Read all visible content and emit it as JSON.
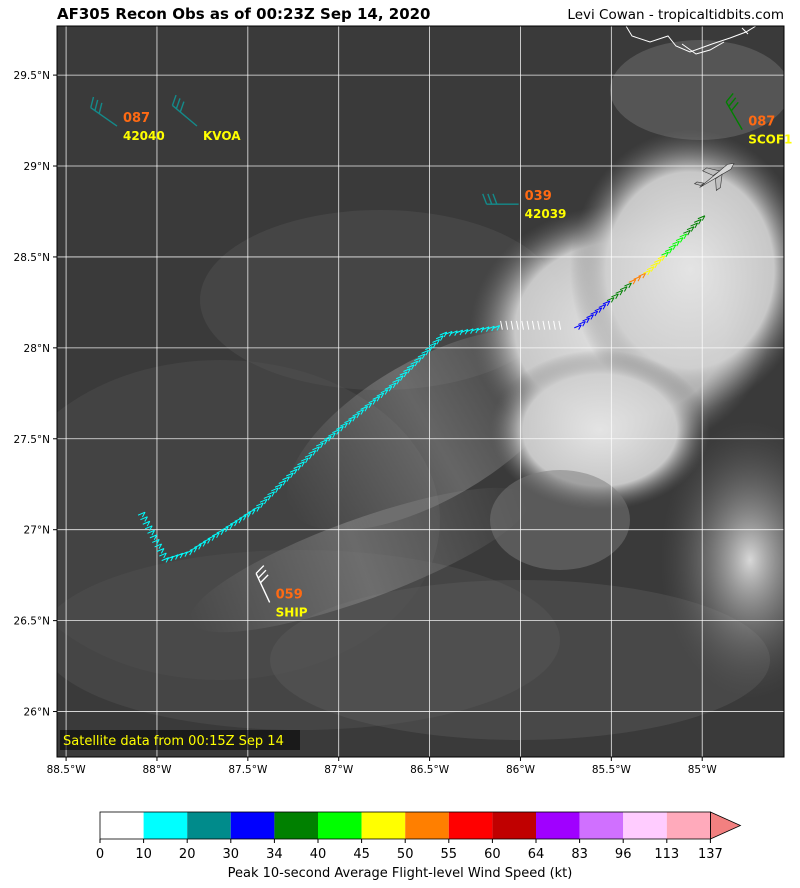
{
  "header": {
    "title": "AF305 Recon Obs as of 00:23Z Sep 14, 2020",
    "credit": "Levi Cowan - tropicaltidbits.com"
  },
  "map": {
    "satellite_note": "Satellite data from 00:15Z Sep 14",
    "lon_range": [
      -88.55,
      -84.55
    ],
    "lat_range": [
      25.75,
      29.77
    ],
    "lon_ticks": [
      -88.5,
      -88,
      -87.5,
      -87,
      -86.5,
      -86,
      -85.5,
      -85
    ],
    "lon_labels": [
      "88.5°W",
      "88°W",
      "87.5°W",
      "87°W",
      "86.5°W",
      "86°W",
      "85.5°W",
      "85°W"
    ],
    "lat_ticks": [
      26,
      26.5,
      27,
      27.5,
      28,
      28.5,
      29,
      29.5
    ],
    "lat_labels": [
      "26°N",
      "26.5°N",
      "27°N",
      "27.5°N",
      "28°N",
      "28.5°N",
      "29°N",
      "29.5°N"
    ],
    "stations": [
      {
        "id": "42040",
        "value": "087",
        "lon": -88.22,
        "lat": 29.22,
        "dir": 305,
        "color": "#148a8a"
      },
      {
        "id": "KVOA",
        "value": "",
        "lon": -87.78,
        "lat": 29.22,
        "dir": 310,
        "color": "#148a8a"
      },
      {
        "id": "42039",
        "value": "039",
        "lon": -86.01,
        "lat": 28.79,
        "dir": 270,
        "color": "#148a8a"
      },
      {
        "id": "SCOF1",
        "value": "087",
        "lon": -84.78,
        "lat": 29.2,
        "dir": 330,
        "color": "#008000"
      },
      {
        "id": "SHIP",
        "value": "059",
        "lon": -87.38,
        "lat": 26.6,
        "dir": 335,
        "color": "#ffffff"
      }
    ],
    "flight_segments": [
      {
        "from": [
          -88.08,
          27.07
        ],
        "to": [
          -87.95,
          26.82
        ],
        "speed": 12
      },
      {
        "from": [
          -87.95,
          26.82
        ],
        "to": [
          -87.82,
          26.86
        ],
        "speed": 13
      },
      {
        "from": [
          -87.82,
          26.86
        ],
        "to": [
          -87.45,
          27.1
        ],
        "speed": 15
      },
      {
        "from": [
          -87.45,
          27.1
        ],
        "to": [
          -87.1,
          27.45
        ],
        "speed": 16
      },
      {
        "from": [
          -87.1,
          27.45
        ],
        "to": [
          -86.7,
          27.78
        ],
        "speed": 17
      },
      {
        "from": [
          -86.7,
          27.78
        ],
        "to": [
          -86.42,
          28.06
        ],
        "speed": 16
      },
      {
        "from": [
          -86.42,
          28.06
        ],
        "to": [
          -86.1,
          28.1
        ],
        "speed": 14
      },
      {
        "from": [
          -86.1,
          28.1
        ],
        "to": [
          -85.75,
          28.1
        ],
        "speed": 5
      },
      {
        "from": [
          -85.68,
          28.1
        ],
        "to": [
          -85.5,
          28.25
        ],
        "speed": 31
      },
      {
        "from": [
          -85.5,
          28.25
        ],
        "to": [
          -85.38,
          28.35
        ],
        "speed": 38
      },
      {
        "from": [
          -85.38,
          28.35
        ],
        "to": [
          -85.3,
          28.4
        ],
        "speed": 51
      },
      {
        "from": [
          -85.3,
          28.4
        ],
        "to": [
          -85.2,
          28.5
        ],
        "speed": 47
      },
      {
        "from": [
          -85.2,
          28.5
        ],
        "to": [
          -85.08,
          28.62
        ],
        "speed": 42
      },
      {
        "from": [
          -85.08,
          28.62
        ],
        "to": [
          -84.98,
          28.72
        ],
        "speed": 35
      }
    ],
    "aircraft_icon": "aircraft-icon"
  },
  "colorbar": {
    "label": "Peak 10-second Average Flight-level Wind Speed (kt)",
    "ticks": [
      "0",
      "10",
      "20",
      "30",
      "34",
      "40",
      "45",
      "50",
      "55",
      "60",
      "64",
      "83",
      "96",
      "113",
      "137"
    ],
    "colors": [
      "#ffffff",
      "#00ffff",
      "#008b8b",
      "#0000ff",
      "#008000",
      "#00ff00",
      "#ffff00",
      "#ff7f00",
      "#ff0000",
      "#c00000",
      "#a000ff",
      "#d070ff",
      "#ffccff",
      "#ffaabb"
    ],
    "extend_color": "#f28080"
  }
}
